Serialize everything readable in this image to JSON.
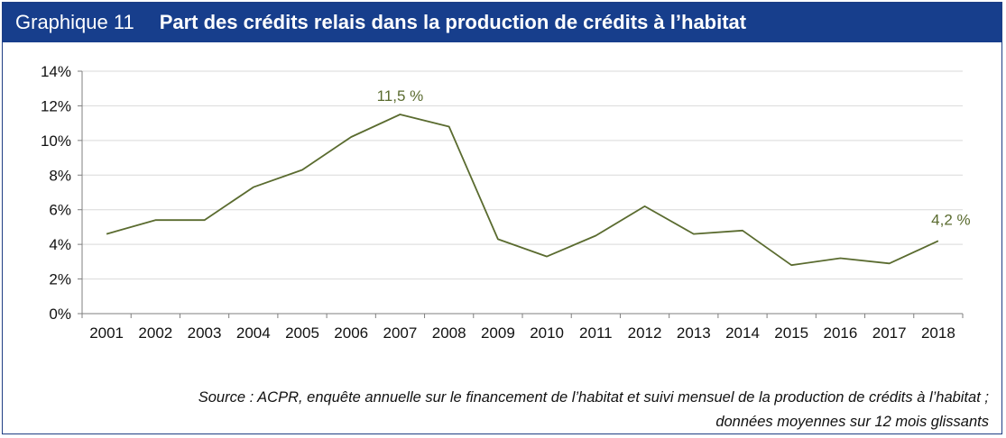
{
  "header": {
    "label": "Graphique 11",
    "title": "Part des crédits relais dans la production de crédits à l’habitat"
  },
  "source": {
    "line1": "Source : ACPR, enquête annuelle sur le financement de l’habitat et suivi mensuel de la production de crédits à l’habitat ;",
    "line2": "données moyennes sur 12 mois glissants"
  },
  "colors": {
    "header_bg": "#173e8c",
    "line": "#5a6b2f",
    "grid": "#d9d9d9",
    "annotation": "#5a6b2f"
  },
  "chart_data": {
    "type": "line",
    "categories": [
      "2001",
      "2002",
      "2003",
      "2004",
      "2005",
      "2006",
      "2007",
      "2008",
      "2009",
      "2010",
      "2011",
      "2012",
      "2013",
      "2014",
      "2015",
      "2016",
      "2017",
      "2018"
    ],
    "series": [
      {
        "values": [
          4.6,
          5.4,
          5.4,
          7.3,
          8.3,
          10.2,
          11.5,
          10.8,
          4.3,
          3.3,
          4.5,
          6.2,
          4.6,
          4.8,
          2.8,
          3.2,
          2.9,
          4.2
        ]
      }
    ],
    "ylim": [
      0,
      14
    ],
    "yticks": [
      "0%",
      "2%",
      "4%",
      "6%",
      "8%",
      "10%",
      "12%",
      "14%"
    ],
    "grid": true,
    "annotations": [
      {
        "category": "2007",
        "text": "11,5 %"
      },
      {
        "category": "2018",
        "text": "4,2 %"
      }
    ]
  }
}
